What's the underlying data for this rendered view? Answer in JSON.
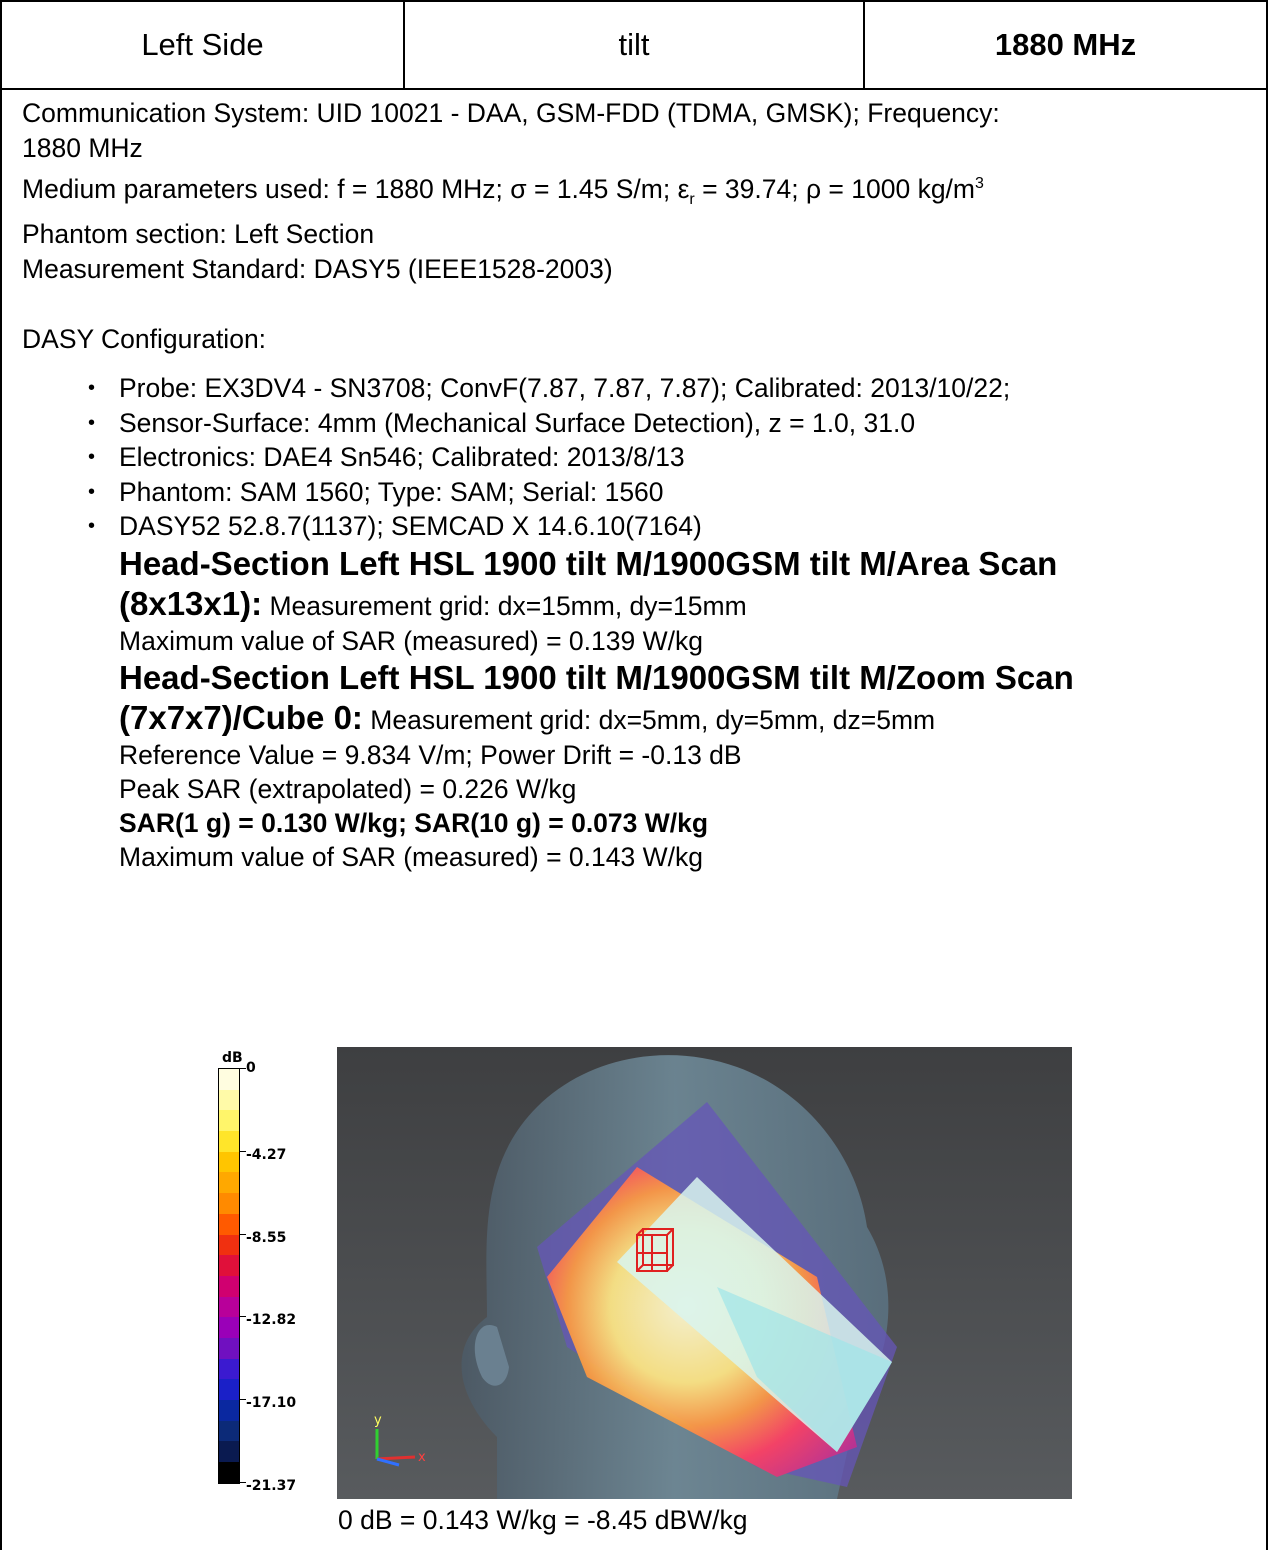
{
  "header": {
    "side": "Left Side",
    "position": "tilt",
    "frequency": "1880 MHz"
  },
  "info": {
    "comm_line1": "Communication System: UID 10021 - DAA, GSM-FDD (TDMA, GMSK); Frequency:",
    "comm_line2": "1880 MHz",
    "medium_prefix": "Medium parameters used: f = 1880 MHz; σ = 1.45 S/m; ε",
    "medium_sub": "r",
    "medium_mid": " = 39.74; ρ = 1000 kg/m",
    "medium_sup": "3",
    "phantom_section": "Phantom section: Left Section",
    "standard": "Measurement Standard: DASY5 (IEEE1528-2003)",
    "dasy_config": "DASY Configuration:"
  },
  "config_items": [
    "Probe: EX3DV4 - SN3708; ConvF(7.87, 7.87, 7.87); Calibrated: 2013/10/22;",
    "Sensor-Surface: 4mm (Mechanical Surface Detection), z = 1.0, 31.0",
    "Electronics: DAE4 Sn546; Calibrated: 2013/8/13",
    "Phantom: SAM 1560; Type: SAM; Serial: 1560",
    "DASY52 52.8.7(1137); SEMCAD X 14.6.10(7164)"
  ],
  "area_scan": {
    "title_line1": "Head-Section Left HSL 1900 tilt M/1900GSM tilt M/Area Scan",
    "title_line2": "(8x13x1):",
    "grid": " Measurement grid: dx=15mm, dy=15mm",
    "max_sar": "Maximum value of SAR (measured) = 0.139 W/kg"
  },
  "zoom_scan": {
    "title_line1": "Head-Section Left HSL 1900 tilt M/1900GSM tilt M/Zoom Scan",
    "title_line2": "(7x7x7)/Cube 0:",
    "grid": " Measurement grid: dx=5mm, dy=5mm, dz=5mm",
    "reference": "Reference Value = 9.834 V/m; Power Drift = -0.13 dB",
    "peak_sar": "Peak SAR (extrapolated) = 0.226 W/kg",
    "sar_summary": "SAR(1 g) = 0.130 W/kg; SAR(10 g) = 0.073 W/kg",
    "max_sar": "Maximum value of SAR (measured) = 0.143 W/kg"
  },
  "colorbar": {
    "unit": "dB",
    "ticks": [
      "0",
      "-4.27",
      "-8.55",
      "-12.82",
      "-17.10",
      "-21.37"
    ],
    "colors": [
      "#fffde0",
      "#fffaa8",
      "#fff56a",
      "#ffe52a",
      "#ffc500",
      "#ffa800",
      "#ff8a00",
      "#ff5a00",
      "#f03010",
      "#e0103a",
      "#d00070",
      "#b8009a",
      "#9a00b8",
      "#7010c0",
      "#3b1ad0",
      "#1a20c8",
      "#0a28a0",
      "#0c2a78",
      "#0a1a50",
      "#000000"
    ]
  },
  "axes_glyph": {
    "y_label": "y",
    "x_label": "x"
  },
  "caption": "0 dB = 0.143 W/kg = -8.45 dBW/kg"
}
